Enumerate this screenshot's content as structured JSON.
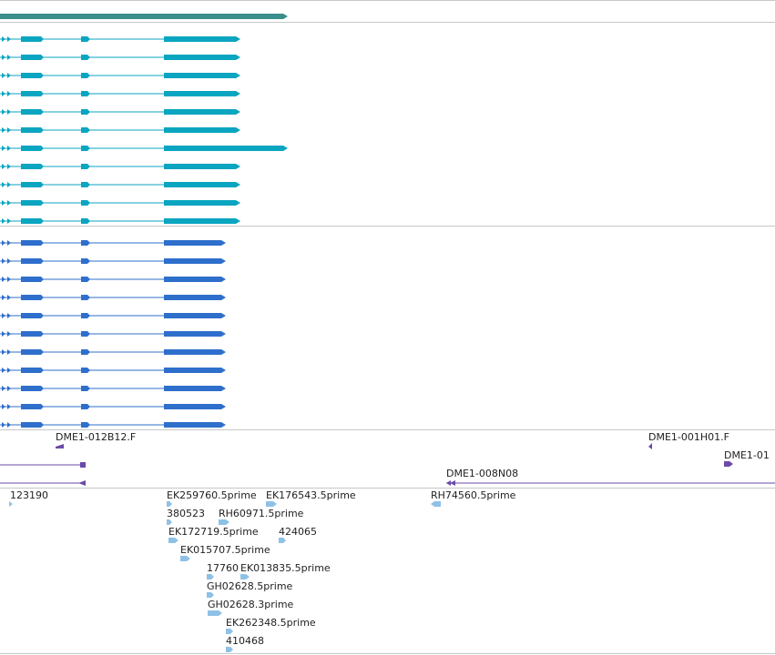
{
  "title": "",
  "colors": {
    "background": "#ffffff",
    "separator": "#c8c8c8",
    "top_feature": "#3a8e8b",
    "track_a": "#0aa5c0",
    "track_b": "#2f6fcc",
    "clone_feature": "#6b4aa8",
    "est_feature": "#8ec1e6"
  },
  "tracks": {
    "top_feature": {
      "count": 1,
      "strand": "+"
    },
    "transcripts_a": {
      "count": 11,
      "strand": "+",
      "long_row_index": 6
    },
    "transcripts_b": {
      "count": 11,
      "strand": "+"
    },
    "clones": {
      "labels": [
        "DME1-012B12.F",
        "DME1-001H01.F",
        "DME1-01",
        "DME1-008N08"
      ]
    },
    "ests": {
      "labels": [
        "123190",
        "EK259760.5prime",
        "EK176543.5prime",
        "RH74560.5prime",
        "380523",
        "RH60971.5prime",
        "EK172719.5prime",
        "424065",
        "EK015707.5prime",
        "17760",
        "EK013835.5prime",
        "GH02628.5prime",
        "GH02628.3prime",
        "EK262348.5prime",
        "410468"
      ]
    }
  }
}
